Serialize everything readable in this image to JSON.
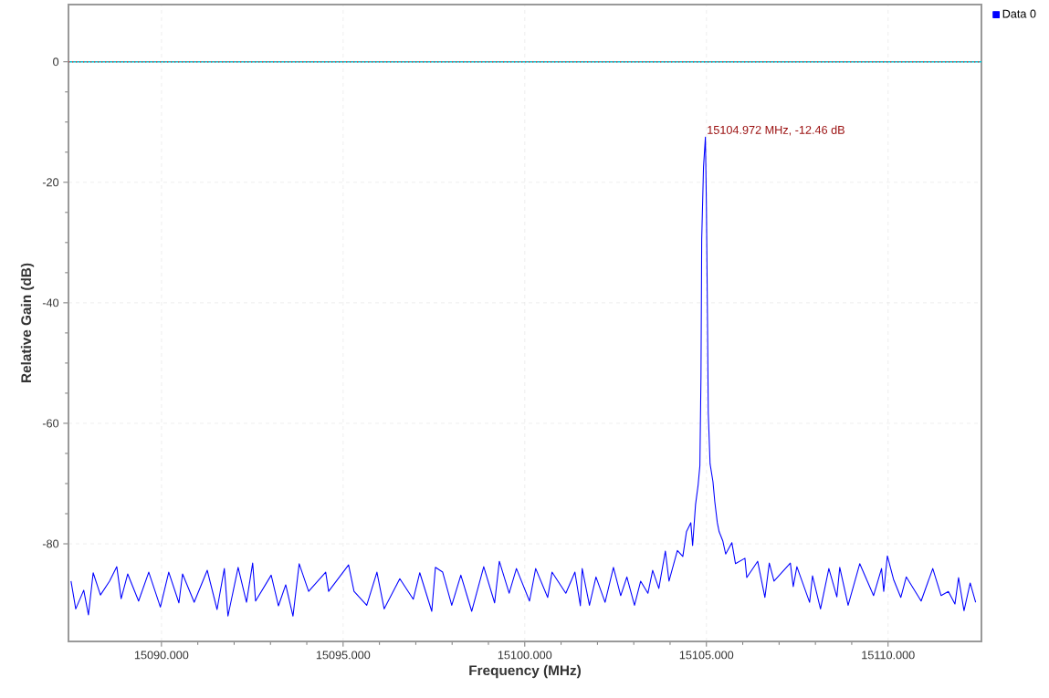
{
  "chart_data": {
    "type": "line",
    "xlabel": "Frequency (MHz)",
    "ylabel": "Relative Gain (dB)",
    "xlim": [
      15087.44,
      15112.57
    ],
    "ylim": [
      -96.2,
      9.5
    ],
    "xticks": [
      {
        "value": 15090,
        "label": "15090.000"
      },
      {
        "value": 15095,
        "label": "15095.000"
      },
      {
        "value": 15100,
        "label": "15100.000"
      },
      {
        "value": 15105,
        "label": "15105.000"
      },
      {
        "value": 15110,
        "label": "15110.000"
      }
    ],
    "yticks": [
      -80,
      -60,
      -40,
      -20,
      0
    ],
    "grid": true,
    "legend": "top right",
    "marker": "none",
    "line_style": "solid",
    "ref_lines": [
      {
        "axis": "y",
        "value": 0,
        "color": "#00c8d8",
        "line_style": "solid"
      },
      {
        "axis": "y",
        "value": 0,
        "color": "#e04040",
        "line_style": "dotted"
      }
    ],
    "annotations": [
      {
        "text": "15104.972 MHz, -12.46 dB",
        "x": 15104.972,
        "y": -12.46
      }
    ],
    "series": [
      {
        "name": "Data 0",
        "color": "#0000ff",
        "x": [
          15087.51,
          15087.64,
          15087.86,
          15087.99,
          15088.12,
          15088.32,
          15088.57,
          15088.77,
          15088.89,
          15089.07,
          15089.37,
          15089.65,
          15089.97,
          15090.2,
          15090.48,
          15090.58,
          15090.9,
          15091.26,
          15091.53,
          15091.73,
          15091.83,
          15092.11,
          15092.34,
          15092.51,
          15092.59,
          15093.02,
          15093.22,
          15093.42,
          15093.62,
          15093.79,
          15094.05,
          15094.52,
          15094.6,
          15095.15,
          15095.3,
          15095.65,
          15095.93,
          15096.13,
          15096.56,
          15096.93,
          15097.11,
          15097.44,
          15097.54,
          15097.74,
          15097.99,
          15098.24,
          15098.54,
          15098.87,
          15099.17,
          15099.3,
          15099.57,
          15099.77,
          15100.13,
          15100.3,
          15100.63,
          15100.75,
          15101.13,
          15101.38,
          15101.53,
          15101.58,
          15101.78,
          15101.96,
          15102.21,
          15102.44,
          15102.64,
          15102.81,
          15103.02,
          15103.19,
          15103.39,
          15103.52,
          15103.69,
          15103.87,
          15103.97,
          15104.2,
          15104.35,
          15104.45,
          15104.57,
          15104.62,
          15104.7,
          15104.77,
          15104.82,
          15104.85,
          15104.87,
          15104.92,
          15104.972,
          15105.0,
          15105.03,
          15105.05,
          15105.1,
          15105.18,
          15105.23,
          15105.3,
          15105.35,
          15105.45,
          15105.53,
          15105.7,
          15105.8,
          15106.06,
          15106.11,
          15106.41,
          15106.61,
          15106.73,
          15106.86,
          15107.31,
          15107.39,
          15107.49,
          15107.84,
          15107.92,
          15108.14,
          15108.37,
          15108.59,
          15108.67,
          15108.9,
          15109.22,
          15109.6,
          15109.82,
          15109.88,
          15109.98,
          15110.15,
          15110.35,
          15110.5,
          15110.91,
          15111.23,
          15111.46,
          15111.66,
          15111.84,
          15111.94,
          15112.09,
          15112.26,
          15112.41
        ],
        "values": [
          -86.2,
          -90.8,
          -87.7,
          -91.8,
          -84.8,
          -88.5,
          -86.2,
          -83.8,
          -89.1,
          -85.0,
          -89.5,
          -84.7,
          -90.5,
          -84.7,
          -89.8,
          -85.0,
          -89.7,
          -84.4,
          -90.9,
          -84.1,
          -92.0,
          -83.9,
          -89.7,
          -83.2,
          -89.5,
          -85.2,
          -90.3,
          -86.8,
          -92.0,
          -83.3,
          -87.9,
          -84.7,
          -87.9,
          -83.5,
          -87.9,
          -90.2,
          -84.7,
          -90.8,
          -85.8,
          -89.2,
          -84.8,
          -91.2,
          -83.9,
          -84.7,
          -90.2,
          -85.2,
          -91.2,
          -83.8,
          -89.8,
          -82.9,
          -88.2,
          -84.1,
          -89.5,
          -84.1,
          -88.9,
          -84.7,
          -88.2,
          -84.7,
          -90.3,
          -84.1,
          -90.2,
          -85.5,
          -89.7,
          -83.9,
          -88.6,
          -85.5,
          -90.2,
          -86.2,
          -88.2,
          -84.4,
          -87.4,
          -81.2,
          -86.2,
          -81.1,
          -82.1,
          -78.0,
          -76.5,
          -80.3,
          -73.5,
          -70.3,
          -67.0,
          -52.3,
          -29.5,
          -17.4,
          -12.5,
          -24.1,
          -43.2,
          -58.2,
          -66.7,
          -69.7,
          -73.0,
          -76.5,
          -78.0,
          -79.5,
          -81.7,
          -79.8,
          -83.3,
          -82.4,
          -85.6,
          -82.9,
          -88.9,
          -83.2,
          -86.2,
          -83.2,
          -87.1,
          -83.8,
          -89.7,
          -85.3,
          -90.8,
          -84.1,
          -88.8,
          -83.9,
          -90.2,
          -83.3,
          -88.6,
          -84.1,
          -87.9,
          -82.0,
          -85.9,
          -88.9,
          -85.5,
          -89.5,
          -84.1,
          -88.6,
          -87.9,
          -90.0,
          -85.6,
          -91.1,
          -86.5,
          -89.7
        ]
      }
    ]
  }
}
